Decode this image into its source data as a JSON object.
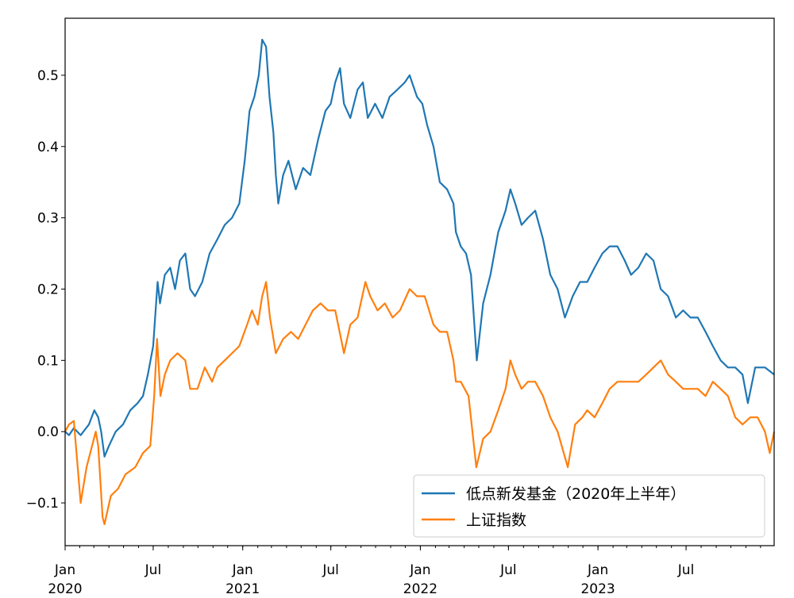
{
  "chart_data": {
    "type": "line",
    "title": "",
    "xlabel": "",
    "ylabel": "",
    "x_range": [
      "2020-01-02",
      "2023-12-29"
    ],
    "ylim": [
      -0.16,
      0.58
    ],
    "grid": false,
    "legend_position": "lower-right",
    "y_ticks": [
      {
        "value": -0.1,
        "label": "−0.1"
      },
      {
        "value": 0.0,
        "label": "0.0"
      },
      {
        "value": 0.1,
        "label": "0.1"
      },
      {
        "value": 0.2,
        "label": "0.2"
      },
      {
        "value": 0.3,
        "label": "0.3"
      },
      {
        "value": 0.4,
        "label": "0.4"
      },
      {
        "value": 0.5,
        "label": "0.5"
      }
    ],
    "x_major_ticks": [
      {
        "date": "2020-01-01",
        "label": "Jan",
        "year": "2020"
      },
      {
        "date": "2020-07-01",
        "label": "Jul",
        "year": ""
      },
      {
        "date": "2021-01-01",
        "label": "Jan",
        "year": "2021"
      },
      {
        "date": "2021-07-01",
        "label": "Jul",
        "year": ""
      },
      {
        "date": "2022-01-01",
        "label": "Jan",
        "year": "2022"
      },
      {
        "date": "2022-07-01",
        "label": "Jul",
        "year": ""
      },
      {
        "date": "2023-01-01",
        "label": "Jan",
        "year": "2023"
      },
      {
        "date": "2023-07-01",
        "label": "Jul",
        "year": ""
      }
    ],
    "series": [
      {
        "name": "低点新发基金（2020年上半年）",
        "color": "#1f77b4",
        "points": [
          [
            "2020-01-02",
            0.0
          ],
          [
            "2020-01-10",
            -0.005
          ],
          [
            "2020-01-20",
            0.005
          ],
          [
            "2020-02-03",
            -0.005
          ],
          [
            "2020-02-20",
            0.01
          ],
          [
            "2020-03-02",
            0.03
          ],
          [
            "2020-03-10",
            0.02
          ],
          [
            "2020-03-16",
            0.0
          ],
          [
            "2020-03-23",
            -0.035
          ],
          [
            "2020-04-01",
            -0.02
          ],
          [
            "2020-04-15",
            0.0
          ],
          [
            "2020-04-30",
            0.01
          ],
          [
            "2020-05-15",
            0.03
          ],
          [
            "2020-05-30",
            0.04
          ],
          [
            "2020-06-10",
            0.05
          ],
          [
            "2020-06-20",
            0.08
          ],
          [
            "2020-07-01",
            0.12
          ],
          [
            "2020-07-07",
            0.18
          ],
          [
            "2020-07-10",
            0.21
          ],
          [
            "2020-07-15",
            0.18
          ],
          [
            "2020-07-25",
            0.22
          ],
          [
            "2020-08-05",
            0.23
          ],
          [
            "2020-08-15",
            0.2
          ],
          [
            "2020-08-25",
            0.24
          ],
          [
            "2020-09-05",
            0.25
          ],
          [
            "2020-09-15",
            0.2
          ],
          [
            "2020-09-25",
            0.19
          ],
          [
            "2020-10-10",
            0.21
          ],
          [
            "2020-10-25",
            0.25
          ],
          [
            "2020-11-10",
            0.27
          ],
          [
            "2020-11-25",
            0.29
          ],
          [
            "2020-12-10",
            0.3
          ],
          [
            "2020-12-25",
            0.32
          ],
          [
            "2021-01-05",
            0.38
          ],
          [
            "2021-01-15",
            0.45
          ],
          [
            "2021-01-25",
            0.47
          ],
          [
            "2021-02-03",
            0.5
          ],
          [
            "2021-02-10",
            0.55
          ],
          [
            "2021-02-18",
            0.54
          ],
          [
            "2021-02-25",
            0.47
          ],
          [
            "2021-03-05",
            0.42
          ],
          [
            "2021-03-10",
            0.36
          ],
          [
            "2021-03-15",
            0.32
          ],
          [
            "2021-03-25",
            0.36
          ],
          [
            "2021-04-05",
            0.38
          ],
          [
            "2021-04-20",
            0.34
          ],
          [
            "2021-05-05",
            0.37
          ],
          [
            "2021-05-20",
            0.36
          ],
          [
            "2021-06-05",
            0.41
          ],
          [
            "2021-06-20",
            0.45
          ],
          [
            "2021-07-01",
            0.46
          ],
          [
            "2021-07-10",
            0.49
          ],
          [
            "2021-07-20",
            0.51
          ],
          [
            "2021-07-28",
            0.46
          ],
          [
            "2021-08-10",
            0.44
          ],
          [
            "2021-08-25",
            0.48
          ],
          [
            "2021-09-05",
            0.49
          ],
          [
            "2021-09-15",
            0.44
          ],
          [
            "2021-09-30",
            0.46
          ],
          [
            "2021-10-15",
            0.44
          ],
          [
            "2021-10-30",
            0.47
          ],
          [
            "2021-11-15",
            0.48
          ],
          [
            "2021-11-30",
            0.49
          ],
          [
            "2021-12-10",
            0.5
          ],
          [
            "2021-12-25",
            0.47
          ],
          [
            "2022-01-05",
            0.46
          ],
          [
            "2022-01-15",
            0.43
          ],
          [
            "2022-01-28",
            0.4
          ],
          [
            "2022-02-10",
            0.35
          ],
          [
            "2022-02-25",
            0.34
          ],
          [
            "2022-03-10",
            0.32
          ],
          [
            "2022-03-15",
            0.28
          ],
          [
            "2022-03-25",
            0.26
          ],
          [
            "2022-04-05",
            0.25
          ],
          [
            "2022-04-15",
            0.22
          ],
          [
            "2022-04-27",
            0.1
          ],
          [
            "2022-05-10",
            0.18
          ],
          [
            "2022-05-25",
            0.22
          ],
          [
            "2022-06-10",
            0.28
          ],
          [
            "2022-06-25",
            0.31
          ],
          [
            "2022-07-05",
            0.34
          ],
          [
            "2022-07-15",
            0.32
          ],
          [
            "2022-07-28",
            0.29
          ],
          [
            "2022-08-10",
            0.3
          ],
          [
            "2022-08-25",
            0.31
          ],
          [
            "2022-09-10",
            0.27
          ],
          [
            "2022-09-25",
            0.22
          ],
          [
            "2022-10-10",
            0.2
          ],
          [
            "2022-10-25",
            0.16
          ],
          [
            "2022-11-10",
            0.19
          ],
          [
            "2022-11-25",
            0.21
          ],
          [
            "2022-12-10",
            0.21
          ],
          [
            "2022-12-25",
            0.23
          ],
          [
            "2023-01-10",
            0.25
          ],
          [
            "2023-01-25",
            0.26
          ],
          [
            "2023-02-10",
            0.26
          ],
          [
            "2023-02-25",
            0.24
          ],
          [
            "2023-03-10",
            0.22
          ],
          [
            "2023-03-25",
            0.23
          ],
          [
            "2023-04-10",
            0.25
          ],
          [
            "2023-04-25",
            0.24
          ],
          [
            "2023-05-10",
            0.2
          ],
          [
            "2023-05-25",
            0.19
          ],
          [
            "2023-06-10",
            0.16
          ],
          [
            "2023-06-25",
            0.17
          ],
          [
            "2023-07-10",
            0.16
          ],
          [
            "2023-07-25",
            0.16
          ],
          [
            "2023-08-10",
            0.14
          ],
          [
            "2023-08-25",
            0.12
          ],
          [
            "2023-09-10",
            0.1
          ],
          [
            "2023-09-25",
            0.09
          ],
          [
            "2023-10-10",
            0.09
          ],
          [
            "2023-10-25",
            0.08
          ],
          [
            "2023-11-05",
            0.04
          ],
          [
            "2023-11-20",
            0.09
          ],
          [
            "2023-12-10",
            0.09
          ],
          [
            "2023-12-29",
            0.08
          ]
        ]
      },
      {
        "name": "上证指数",
        "color": "#ff7f0e",
        "points": [
          [
            "2020-01-02",
            0.0
          ],
          [
            "2020-01-10",
            0.01
          ],
          [
            "2020-01-20",
            0.015
          ],
          [
            "2020-02-03",
            -0.1
          ],
          [
            "2020-02-15",
            -0.05
          ],
          [
            "2020-03-05",
            0.0
          ],
          [
            "2020-03-10",
            -0.02
          ],
          [
            "2020-03-19",
            -0.12
          ],
          [
            "2020-03-23",
            -0.13
          ],
          [
            "2020-04-05",
            -0.09
          ],
          [
            "2020-04-20",
            -0.08
          ],
          [
            "2020-05-05",
            -0.06
          ],
          [
            "2020-05-25",
            -0.05
          ],
          [
            "2020-06-10",
            -0.03
          ],
          [
            "2020-06-25",
            -0.02
          ],
          [
            "2020-07-03",
            0.05
          ],
          [
            "2020-07-09",
            0.13
          ],
          [
            "2020-07-16",
            0.05
          ],
          [
            "2020-07-25",
            0.08
          ],
          [
            "2020-08-05",
            0.1
          ],
          [
            "2020-08-20",
            0.11
          ],
          [
            "2020-09-05",
            0.1
          ],
          [
            "2020-09-15",
            0.06
          ],
          [
            "2020-09-30",
            0.06
          ],
          [
            "2020-10-15",
            0.09
          ],
          [
            "2020-10-30",
            0.07
          ],
          [
            "2020-11-10",
            0.09
          ],
          [
            "2020-11-25",
            0.1
          ],
          [
            "2020-12-10",
            0.11
          ],
          [
            "2020-12-25",
            0.12
          ],
          [
            "2021-01-10",
            0.15
          ],
          [
            "2021-01-20",
            0.17
          ],
          [
            "2021-02-01",
            0.15
          ],
          [
            "2021-02-10",
            0.19
          ],
          [
            "2021-02-18",
            0.21
          ],
          [
            "2021-02-26",
            0.16
          ],
          [
            "2021-03-10",
            0.11
          ],
          [
            "2021-03-25",
            0.13
          ],
          [
            "2021-04-10",
            0.14
          ],
          [
            "2021-04-25",
            0.13
          ],
          [
            "2021-05-10",
            0.15
          ],
          [
            "2021-05-25",
            0.17
          ],
          [
            "2021-06-10",
            0.18
          ],
          [
            "2021-06-25",
            0.17
          ],
          [
            "2021-07-10",
            0.17
          ],
          [
            "2021-07-25",
            0.12
          ],
          [
            "2021-07-28",
            0.11
          ],
          [
            "2021-08-10",
            0.15
          ],
          [
            "2021-08-25",
            0.16
          ],
          [
            "2021-09-10",
            0.21
          ],
          [
            "2021-09-20",
            0.19
          ],
          [
            "2021-10-05",
            0.17
          ],
          [
            "2021-10-20",
            0.18
          ],
          [
            "2021-11-05",
            0.16
          ],
          [
            "2021-11-20",
            0.17
          ],
          [
            "2021-12-10",
            0.2
          ],
          [
            "2021-12-25",
            0.19
          ],
          [
            "2022-01-10",
            0.19
          ],
          [
            "2022-01-28",
            0.15
          ],
          [
            "2022-02-10",
            0.14
          ],
          [
            "2022-02-25",
            0.14
          ],
          [
            "2022-03-10",
            0.1
          ],
          [
            "2022-03-15",
            0.07
          ],
          [
            "2022-03-25",
            0.07
          ],
          [
            "2022-04-10",
            0.05
          ],
          [
            "2022-04-26",
            -0.05
          ],
          [
            "2022-05-10",
            -0.01
          ],
          [
            "2022-05-25",
            0.0
          ],
          [
            "2022-06-10",
            0.03
          ],
          [
            "2022-06-25",
            0.06
          ],
          [
            "2022-07-05",
            0.1
          ],
          [
            "2022-07-15",
            0.08
          ],
          [
            "2022-07-28",
            0.06
          ],
          [
            "2022-08-10",
            0.07
          ],
          [
            "2022-08-25",
            0.07
          ],
          [
            "2022-09-10",
            0.05
          ],
          [
            "2022-09-25",
            0.02
          ],
          [
            "2022-10-10",
            0.0
          ],
          [
            "2022-10-31",
            -0.05
          ],
          [
            "2022-11-15",
            0.01
          ],
          [
            "2022-11-30",
            0.02
          ],
          [
            "2022-12-10",
            0.03
          ],
          [
            "2022-12-25",
            0.02
          ],
          [
            "2023-01-10",
            0.04
          ],
          [
            "2023-01-25",
            0.06
          ],
          [
            "2023-02-10",
            0.07
          ],
          [
            "2023-02-25",
            0.07
          ],
          [
            "2023-03-10",
            0.07
          ],
          [
            "2023-03-25",
            0.07
          ],
          [
            "2023-04-10",
            0.08
          ],
          [
            "2023-04-25",
            0.09
          ],
          [
            "2023-05-10",
            0.1
          ],
          [
            "2023-05-25",
            0.08
          ],
          [
            "2023-06-10",
            0.07
          ],
          [
            "2023-06-25",
            0.06
          ],
          [
            "2023-07-10",
            0.06
          ],
          [
            "2023-07-25",
            0.06
          ],
          [
            "2023-08-10",
            0.05
          ],
          [
            "2023-08-25",
            0.07
          ],
          [
            "2023-09-10",
            0.06
          ],
          [
            "2023-09-25",
            0.05
          ],
          [
            "2023-10-10",
            0.02
          ],
          [
            "2023-10-25",
            0.01
          ],
          [
            "2023-11-10",
            0.02
          ],
          [
            "2023-11-25",
            0.02
          ],
          [
            "2023-12-10",
            0.0
          ],
          [
            "2023-12-20",
            -0.03
          ],
          [
            "2023-12-29",
            0.0
          ]
        ]
      }
    ]
  }
}
